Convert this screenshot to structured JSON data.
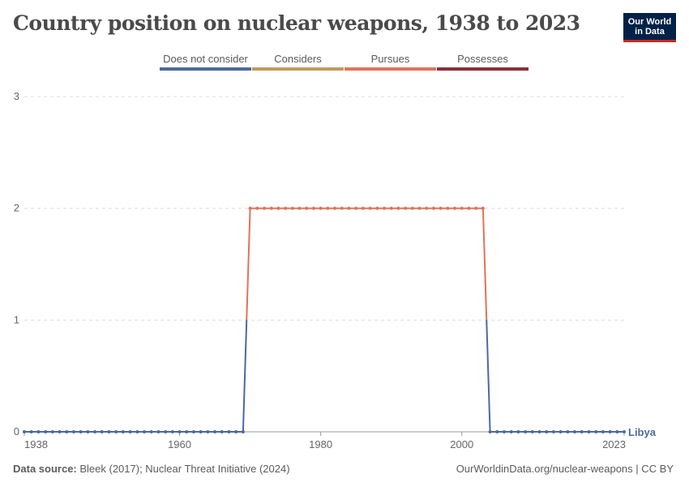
{
  "header": {
    "title": "Country position on nuclear weapons, 1938 to 2023",
    "logo_line1": "Our World",
    "logo_line2": "in Data"
  },
  "footer": {
    "source_label": "Data source:",
    "source_text": " Bleek (2017); Nuclear Threat Initiative (2024)",
    "url": "OurWorldinData.org/nuclear-weapons | CC BY"
  },
  "colors": {
    "does_not_consider": "#4c6a9c",
    "considers": "#bf9a5e",
    "pursues": "#e0735a",
    "possesses": "#883039",
    "grid": "#dddddd",
    "axis": "#999999"
  },
  "chart_data": {
    "type": "line",
    "title": "Country position on nuclear weapons, 1938 to 2023",
    "xlabel": "",
    "ylabel": "",
    "xlim": [
      1938,
      2023
    ],
    "ylim": [
      0,
      3
    ],
    "x_ticks": [
      "1938",
      "1960",
      "1980",
      "2000",
      "2023"
    ],
    "y_ticks": [
      "0",
      "1",
      "2",
      "3"
    ],
    "legend": [
      {
        "label": "Does not consider",
        "value": 0,
        "color": "#4c6a9c"
      },
      {
        "label": "Considers",
        "value": 1,
        "color": "#bf9a5e"
      },
      {
        "label": "Pursues",
        "value": 2,
        "color": "#e0735a"
      },
      {
        "label": "Possesses",
        "value": 3,
        "color": "#883039"
      }
    ],
    "legend_position": "top",
    "grid": true,
    "series": [
      {
        "name": "Libya",
        "segments": [
          {
            "from": 1938,
            "to": 1969,
            "value": 0
          },
          {
            "from": 1970,
            "to": 2003,
            "value": 2
          },
          {
            "from": 2004,
            "to": 2023,
            "value": 0
          }
        ]
      }
    ]
  }
}
